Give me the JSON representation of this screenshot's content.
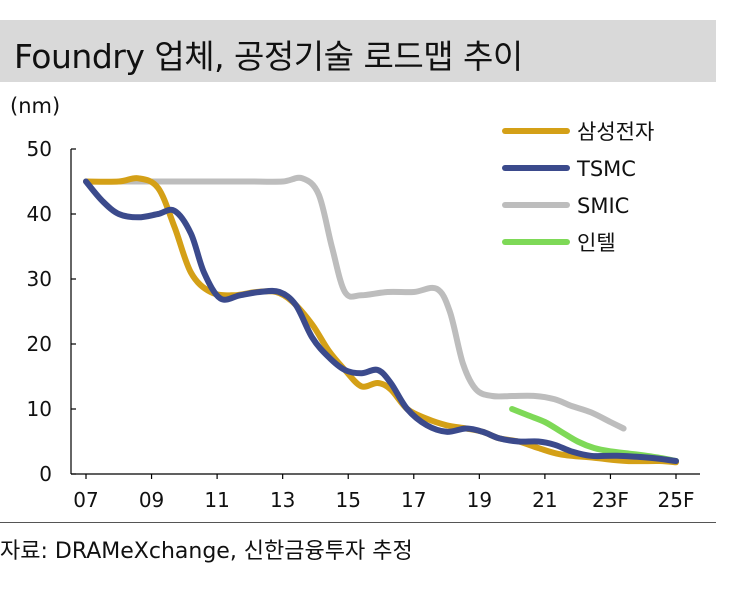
{
  "header": {
    "title": "Foundry 업체, 공정기술 로드맵 추이"
  },
  "chart_data": {
    "type": "line",
    "title": "Foundry 업체, 공정기술 로드맵 추이",
    "ylabel": "(nm)",
    "xlabel": "",
    "ylim": [
      0,
      50
    ],
    "yticks": [
      0,
      10,
      20,
      30,
      40,
      50
    ],
    "x_range": [
      2007,
      2025
    ],
    "xticks": [
      {
        "value": 2007,
        "label": "07"
      },
      {
        "value": 2009,
        "label": "09"
      },
      {
        "value": 2011,
        "label": "11"
      },
      {
        "value": 2013,
        "label": "13"
      },
      {
        "value": 2015,
        "label": "15"
      },
      {
        "value": 2017,
        "label": "17"
      },
      {
        "value": 2019,
        "label": "19"
      },
      {
        "value": 2021,
        "label": "21"
      },
      {
        "value": 2023,
        "label": "23F"
      },
      {
        "value": 2025,
        "label": "25F"
      }
    ],
    "grid": false,
    "legend_position": "top-right",
    "series": [
      {
        "name": "삼성전자",
        "color": "#d4a017",
        "points": [
          [
            2007,
            45
          ],
          [
            2008,
            45
          ],
          [
            2008.6,
            45.5
          ],
          [
            2009.2,
            44
          ],
          [
            2009.7,
            38
          ],
          [
            2010.2,
            31
          ],
          [
            2010.8,
            28
          ],
          [
            2011.5,
            27.5
          ],
          [
            2012.2,
            28
          ],
          [
            2012.8,
            28
          ],
          [
            2013.3,
            26.5
          ],
          [
            2013.9,
            23
          ],
          [
            2014.4,
            19
          ],
          [
            2014.9,
            16
          ],
          [
            2015.4,
            13.5
          ],
          [
            2015.9,
            14
          ],
          [
            2016.3,
            13
          ],
          [
            2016.8,
            10
          ],
          [
            2017.4,
            8.5
          ],
          [
            2018,
            7.5
          ],
          [
            2018.6,
            7
          ],
          [
            2019.1,
            6.5
          ],
          [
            2019.6,
            5.5
          ],
          [
            2020.2,
            5
          ],
          [
            2020.8,
            4
          ],
          [
            2021.5,
            3
          ],
          [
            2022.5,
            2.5
          ],
          [
            2023.5,
            2
          ],
          [
            2024.5,
            2
          ],
          [
            2025,
            1.8
          ]
        ]
      },
      {
        "name": "TSMC",
        "color": "#3b4a8c",
        "points": [
          [
            2007,
            45
          ],
          [
            2007.5,
            42
          ],
          [
            2008,
            40
          ],
          [
            2008.6,
            39.5
          ],
          [
            2009.2,
            40
          ],
          [
            2009.7,
            40.5
          ],
          [
            2010.2,
            37
          ],
          [
            2010.6,
            31
          ],
          [
            2011.1,
            27
          ],
          [
            2011.7,
            27.5
          ],
          [
            2012.3,
            28
          ],
          [
            2012.9,
            28
          ],
          [
            2013.4,
            26
          ],
          [
            2013.9,
            21
          ],
          [
            2014.4,
            18
          ],
          [
            2014.9,
            16
          ],
          [
            2015.4,
            15.5
          ],
          [
            2015.9,
            16
          ],
          [
            2016.3,
            14
          ],
          [
            2016.8,
            10
          ],
          [
            2017.4,
            7.5
          ],
          [
            2018,
            6.5
          ],
          [
            2018.6,
            7
          ],
          [
            2019.1,
            6.5
          ],
          [
            2019.6,
            5.5
          ],
          [
            2020.2,
            5
          ],
          [
            2020.8,
            5
          ],
          [
            2021.3,
            4.5
          ],
          [
            2021.8,
            3.5
          ],
          [
            2022.4,
            2.8
          ],
          [
            2023.2,
            2.8
          ],
          [
            2024.2,
            2.5
          ],
          [
            2025,
            2
          ]
        ]
      },
      {
        "name": "SMIC",
        "color": "#bdbdbd",
        "points": [
          [
            2008,
            45
          ],
          [
            2009,
            45
          ],
          [
            2010,
            45
          ],
          [
            2011,
            45
          ],
          [
            2012,
            45
          ],
          [
            2013,
            45
          ],
          [
            2013.6,
            45.5
          ],
          [
            2014.1,
            43
          ],
          [
            2014.5,
            35
          ],
          [
            2014.9,
            28
          ],
          [
            2015.4,
            27.5
          ],
          [
            2016.2,
            28
          ],
          [
            2017,
            28
          ],
          [
            2017.7,
            28.5
          ],
          [
            2018.1,
            25
          ],
          [
            2018.5,
            17
          ],
          [
            2018.9,
            13
          ],
          [
            2019.4,
            12
          ],
          [
            2020,
            12
          ],
          [
            2020.7,
            12
          ],
          [
            2021.3,
            11.5
          ],
          [
            2021.8,
            10.5
          ],
          [
            2022.4,
            9.5
          ],
          [
            2023,
            8
          ],
          [
            2023.4,
            7
          ]
        ]
      },
      {
        "name": "인텔",
        "color": "#7ed957",
        "points": [
          [
            2020,
            10
          ],
          [
            2020.5,
            9
          ],
          [
            2021,
            8
          ],
          [
            2021.5,
            6.5
          ],
          [
            2022,
            5
          ],
          [
            2022.5,
            4
          ],
          [
            2023,
            3.5
          ],
          [
            2023.8,
            3
          ],
          [
            2024.5,
            2.5
          ],
          [
            2025,
            2
          ]
        ]
      }
    ]
  },
  "footer": {
    "source": "자료: DRAMeXchange, 신한금융투자 추정"
  }
}
